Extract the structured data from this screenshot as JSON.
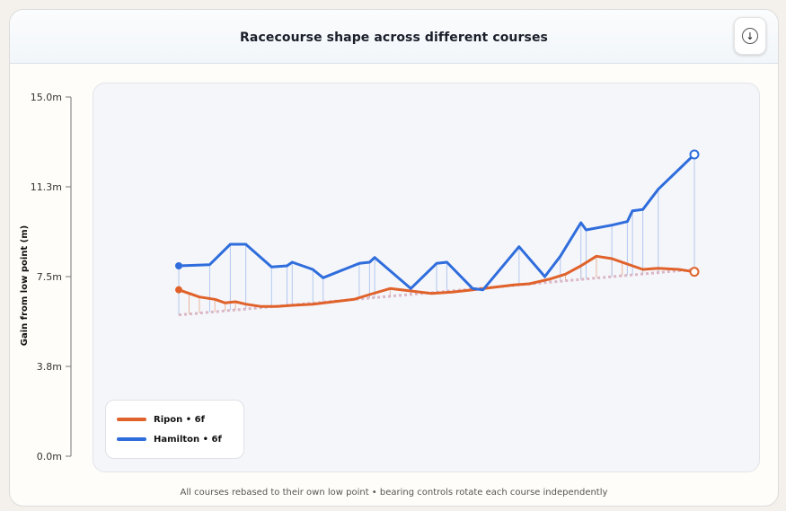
{
  "header": {
    "title": "Racecourse shape across different courses",
    "download_icon": "download-icon"
  },
  "chart_data": {
    "type": "line",
    "title": "Racecourse shape across different courses",
    "ylabel": "Gain from low point (m)",
    "xlabel": "",
    "ylim": [
      0,
      15
    ],
    "yticks": [
      "15.0m",
      "11.3m",
      "7.5m",
      "3.8m",
      "0.0m"
    ],
    "ytick_values": [
      15,
      11.25,
      7.5,
      3.75,
      0
    ],
    "grid": false,
    "legend_position": "bottom-left",
    "baseline": [
      [
        0,
        5.9
      ],
      [
        1,
        7.8
      ]
    ],
    "series": [
      {
        "name": "Ripon • 6f",
        "color": "#e0622a",
        "points": [
          [
            0,
            6.95
          ],
          [
            0.02,
            6.8
          ],
          [
            0.04,
            6.65
          ],
          [
            0.07,
            6.55
          ],
          [
            0.09,
            6.4
          ],
          [
            0.11,
            6.45
          ],
          [
            0.13,
            6.35
          ],
          [
            0.16,
            6.25
          ],
          [
            0.19,
            6.25
          ],
          [
            0.22,
            6.3
          ],
          [
            0.26,
            6.35
          ],
          [
            0.3,
            6.45
          ],
          [
            0.34,
            6.55
          ],
          [
            0.37,
            6.75
          ],
          [
            0.41,
            7.0
          ],
          [
            0.45,
            6.9
          ],
          [
            0.49,
            6.8
          ],
          [
            0.53,
            6.85
          ],
          [
            0.57,
            6.95
          ],
          [
            0.61,
            7.05
          ],
          [
            0.65,
            7.15
          ],
          [
            0.68,
            7.2
          ],
          [
            0.72,
            7.4
          ],
          [
            0.75,
            7.6
          ],
          [
            0.78,
            7.95
          ],
          [
            0.81,
            8.35
          ],
          [
            0.84,
            8.25
          ],
          [
            0.86,
            8.1
          ],
          [
            0.9,
            7.8
          ],
          [
            0.93,
            7.85
          ],
          [
            0.97,
            7.8
          ],
          [
            1,
            7.7
          ]
        ]
      },
      {
        "name": "Hamilton • 6f",
        "color": "#2f6ddc",
        "points": [
          [
            0,
            7.95
          ],
          [
            0.06,
            8.0
          ],
          [
            0.1,
            8.85
          ],
          [
            0.13,
            8.85
          ],
          [
            0.18,
            7.9
          ],
          [
            0.21,
            7.95
          ],
          [
            0.22,
            8.1
          ],
          [
            0.26,
            7.8
          ],
          [
            0.28,
            7.45
          ],
          [
            0.35,
            8.05
          ],
          [
            0.37,
            8.1
          ],
          [
            0.38,
            8.3
          ],
          [
            0.45,
            7.0
          ],
          [
            0.5,
            8.05
          ],
          [
            0.52,
            8.1
          ],
          [
            0.57,
            7.0
          ],
          [
            0.59,
            6.95
          ],
          [
            0.66,
            8.75
          ],
          [
            0.71,
            7.5
          ],
          [
            0.74,
            8.35
          ],
          [
            0.78,
            9.75
          ],
          [
            0.79,
            9.45
          ],
          [
            0.84,
            9.65
          ],
          [
            0.87,
            9.8
          ],
          [
            0.88,
            10.25
          ],
          [
            0.9,
            10.3
          ],
          [
            0.93,
            11.15
          ],
          [
            1,
            12.6
          ]
        ]
      }
    ]
  },
  "legend": {
    "items": [
      {
        "label": "Ripon • 6f",
        "color": "#e0622a"
      },
      {
        "label": "Hamilton • 6f",
        "color": "#2f6ddc"
      }
    ]
  },
  "caption": "All courses rebased to their own low point • bearing controls rotate each course independently"
}
